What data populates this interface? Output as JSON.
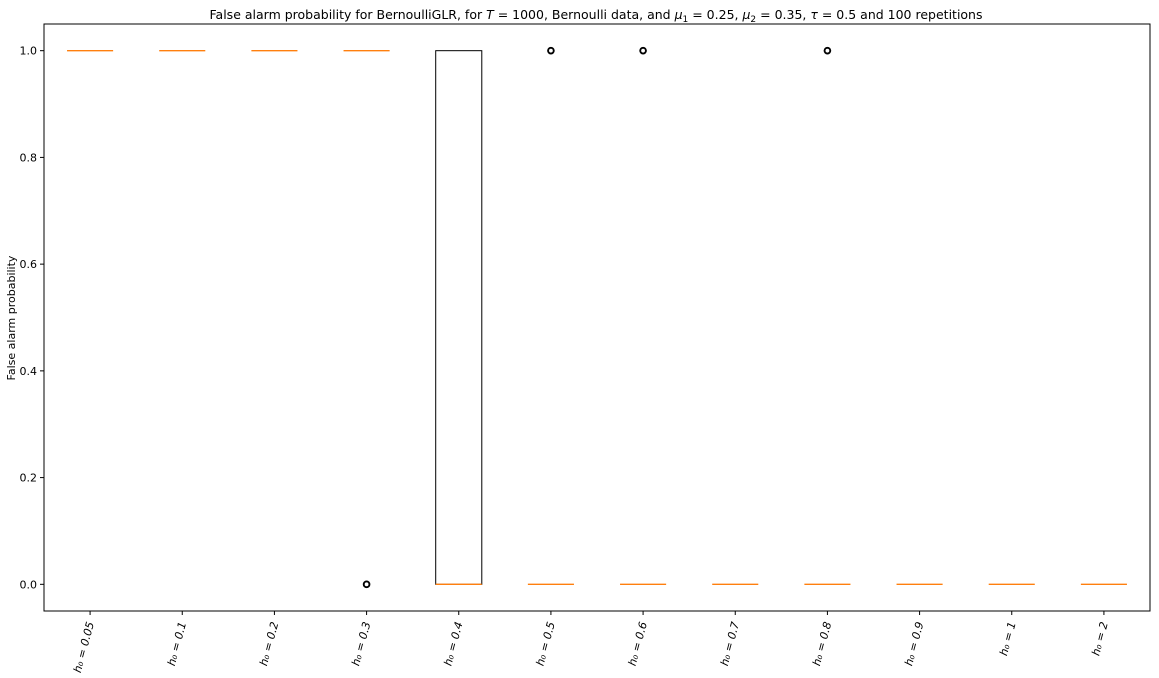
{
  "chart_data": {
    "type": "box",
    "title": "False alarm probability for BernoulliGLR, for T = 1000, Bernoulli data, and μ₁ = 0.25, μ₂ = 0.35, τ = 0.5 and 100 repetitions",
    "title_parts": [
      {
        "t": "False alarm probability for BernoulliGLR, for "
      },
      {
        "t": "T",
        "it": true
      },
      {
        "t": " = 1000, Bernoulli data, and "
      },
      {
        "t": "μ",
        "it": true
      },
      {
        "t": "1",
        "sub": true
      },
      {
        "t": " = 0.25, "
      },
      {
        "t": "μ",
        "it": true
      },
      {
        "t": "2",
        "sub": true
      },
      {
        "t": " = 0.35, "
      },
      {
        "t": "τ",
        "it": true
      },
      {
        "t": " = 0.5 and 100 repetitions"
      }
    ],
    "ylabel": "False alarm probability",
    "xlabel": "",
    "ylim": [
      -0.05,
      1.05
    ],
    "yticks": [
      0.0,
      0.2,
      0.4,
      0.6,
      0.8,
      1.0
    ],
    "ytick_labels": [
      "0.0",
      "0.2",
      "0.4",
      "0.6",
      "0.8",
      "1.0"
    ],
    "categories": [
      "h₀ = 0.05",
      "h₀ = 0.1",
      "h₀ = 0.2",
      "h₀ = 0.3",
      "h₀ = 0.4",
      "h₀ = 0.5",
      "h₀ = 0.6",
      "h₀ = 0.7",
      "h₀ = 0.8",
      "h₀ = 0.9",
      "h₀ = 1",
      "h₀ = 2"
    ],
    "boxes": [
      {
        "q1": 1,
        "median": 1,
        "q3": 1,
        "whislo": 1,
        "whishi": 1,
        "fliers": []
      },
      {
        "q1": 1,
        "median": 1,
        "q3": 1,
        "whislo": 1,
        "whishi": 1,
        "fliers": []
      },
      {
        "q1": 1,
        "median": 1,
        "q3": 1,
        "whislo": 1,
        "whishi": 1,
        "fliers": []
      },
      {
        "q1": 1,
        "median": 1,
        "q3": 1,
        "whislo": 1,
        "whishi": 1,
        "fliers": [
          0
        ]
      },
      {
        "q1": 0,
        "median": 0,
        "q3": 1,
        "whislo": 0,
        "whishi": 1,
        "fliers": []
      },
      {
        "q1": 0,
        "median": 0,
        "q3": 0,
        "whislo": 0,
        "whishi": 0,
        "fliers": [
          1
        ]
      },
      {
        "q1": 0,
        "median": 0,
        "q3": 0,
        "whislo": 0,
        "whishi": 0,
        "fliers": [
          1
        ]
      },
      {
        "q1": 0,
        "median": 0,
        "q3": 0,
        "whislo": 0,
        "whishi": 0,
        "fliers": []
      },
      {
        "q1": 0,
        "median": 0,
        "q3": 0,
        "whislo": 0,
        "whishi": 0,
        "fliers": [
          1
        ]
      },
      {
        "q1": 0,
        "median": 0,
        "q3": 0,
        "whislo": 0,
        "whishi": 0,
        "fliers": []
      },
      {
        "q1": 0,
        "median": 0,
        "q3": 0,
        "whislo": 0,
        "whishi": 0,
        "fliers": []
      },
      {
        "q1": 0,
        "median": 0,
        "q3": 0,
        "whislo": 0,
        "whishi": 0,
        "fliers": []
      }
    ],
    "grid": false,
    "colors": {
      "median": "#ff7f0e",
      "box": "#000000",
      "axes": "#000000",
      "background": "#ffffff"
    }
  }
}
